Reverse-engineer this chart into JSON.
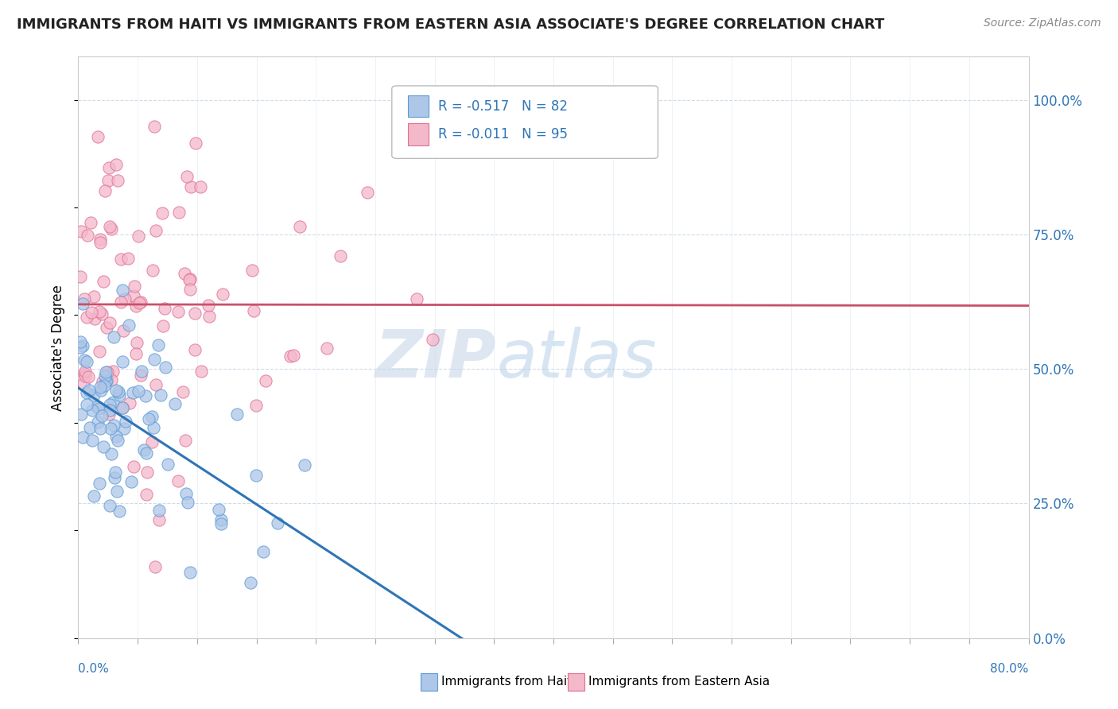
{
  "title": "IMMIGRANTS FROM HAITI VS IMMIGRANTS FROM EASTERN ASIA ASSOCIATE'S DEGREE CORRELATION CHART",
  "source_text": "Source: ZipAtlas.com",
  "ylabel": "Associate's Degree",
  "ytick_labels": [
    "0.0%",
    "25.0%",
    "50.0%",
    "75.0%",
    "100.0%"
  ],
  "ytick_values": [
    0.0,
    0.25,
    0.5,
    0.75,
    1.0
  ],
  "xmin": 0.0,
  "xmax": 0.8,
  "ymin": 0.0,
  "ymax": 1.08,
  "haiti_color": "#aec6e8",
  "haiti_edge_color": "#5b9bd5",
  "eastern_asia_color": "#f4b8cb",
  "eastern_asia_edge_color": "#e07090",
  "haiti_R": -0.517,
  "haiti_N": 82,
  "eastern_asia_R": -0.011,
  "eastern_asia_N": 95,
  "trend_haiti_color": "#2e75b6",
  "trend_eastern_color": "#c9506a",
  "watermark_zip": "ZIP",
  "watermark_atlas": "atlas",
  "legend_label_haiti": "Immigrants from Haiti",
  "legend_label_eastern": "Immigrants from Eastern Asia",
  "legend_text_color": "#2e75b6",
  "title_fontsize": 13,
  "source_fontsize": 10
}
